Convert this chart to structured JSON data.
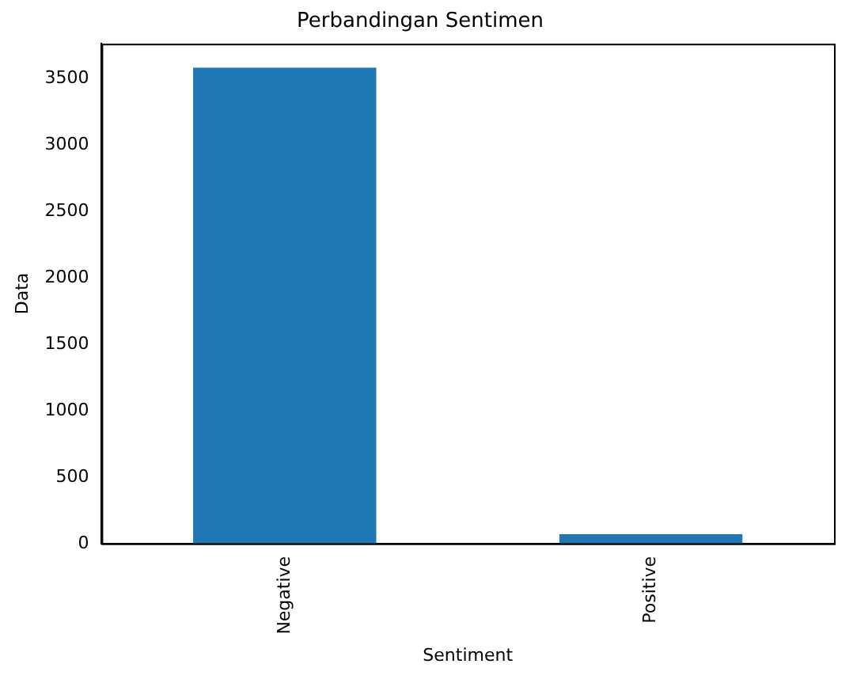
{
  "chart_data": {
    "type": "bar",
    "title": "Perbandingan Sentimen",
    "xlabel": "Sentiment",
    "ylabel": "Data",
    "categories": [
      "Negative",
      "Positive"
    ],
    "values": [
      3580,
      70
    ],
    "color": "#1f77b4",
    "ylim": [
      0,
      3760
    ],
    "yticks": [
      0,
      500,
      1000,
      1500,
      2000,
      2500,
      3000,
      3500
    ],
    "grid": false,
    "legend": false
  }
}
